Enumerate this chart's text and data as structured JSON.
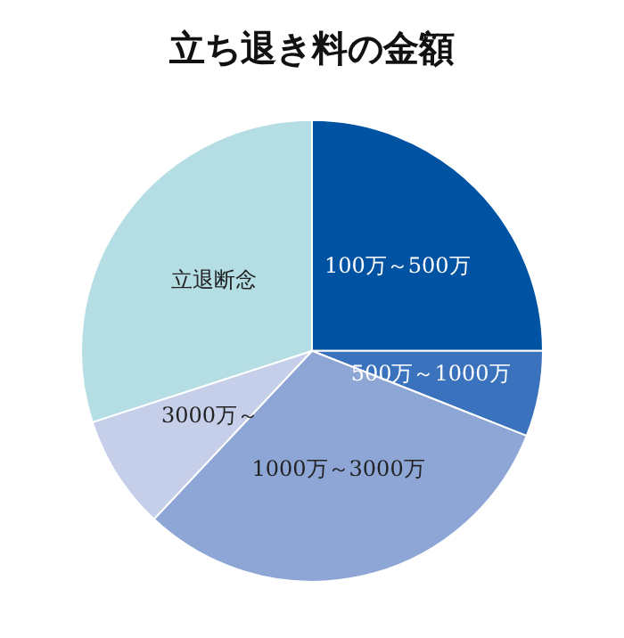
{
  "chart_data": {
    "type": "pie",
    "title": "立ち退き料の金額",
    "categories": [
      "100万～500万",
      "500万～1000万",
      "1000万～3000万",
      "3000万～",
      "立退断念"
    ],
    "values": [
      25,
      6,
      31,
      8,
      30
    ],
    "colors": [
      "#0052a3",
      "#3a72bd",
      "#8ea6d5",
      "#c6cfea",
      "#b4dee4"
    ]
  }
}
